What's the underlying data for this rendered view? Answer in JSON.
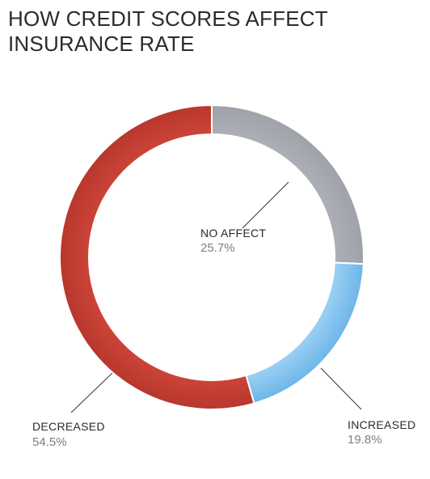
{
  "chart_data": {
    "type": "pie",
    "title_lines": [
      "HOW CREDIT SCORES AFFECT",
      "INSURANCE RATE"
    ],
    "slices": [
      {
        "label": "NO AFFECT",
        "value": 25.7,
        "value_label": "25.7%",
        "color": "#9ea1a8",
        "color_light": "#b0b3b9"
      },
      {
        "label": "INCREASED",
        "value": 19.8,
        "value_label": "19.8%",
        "color": "#6ab4e8",
        "color_light": "#a9d7f6"
      },
      {
        "label": "DECREASED",
        "value": 54.5,
        "value_label": "54.5%",
        "color": "#b6362c",
        "color_light": "#d2473b"
      }
    ]
  }
}
